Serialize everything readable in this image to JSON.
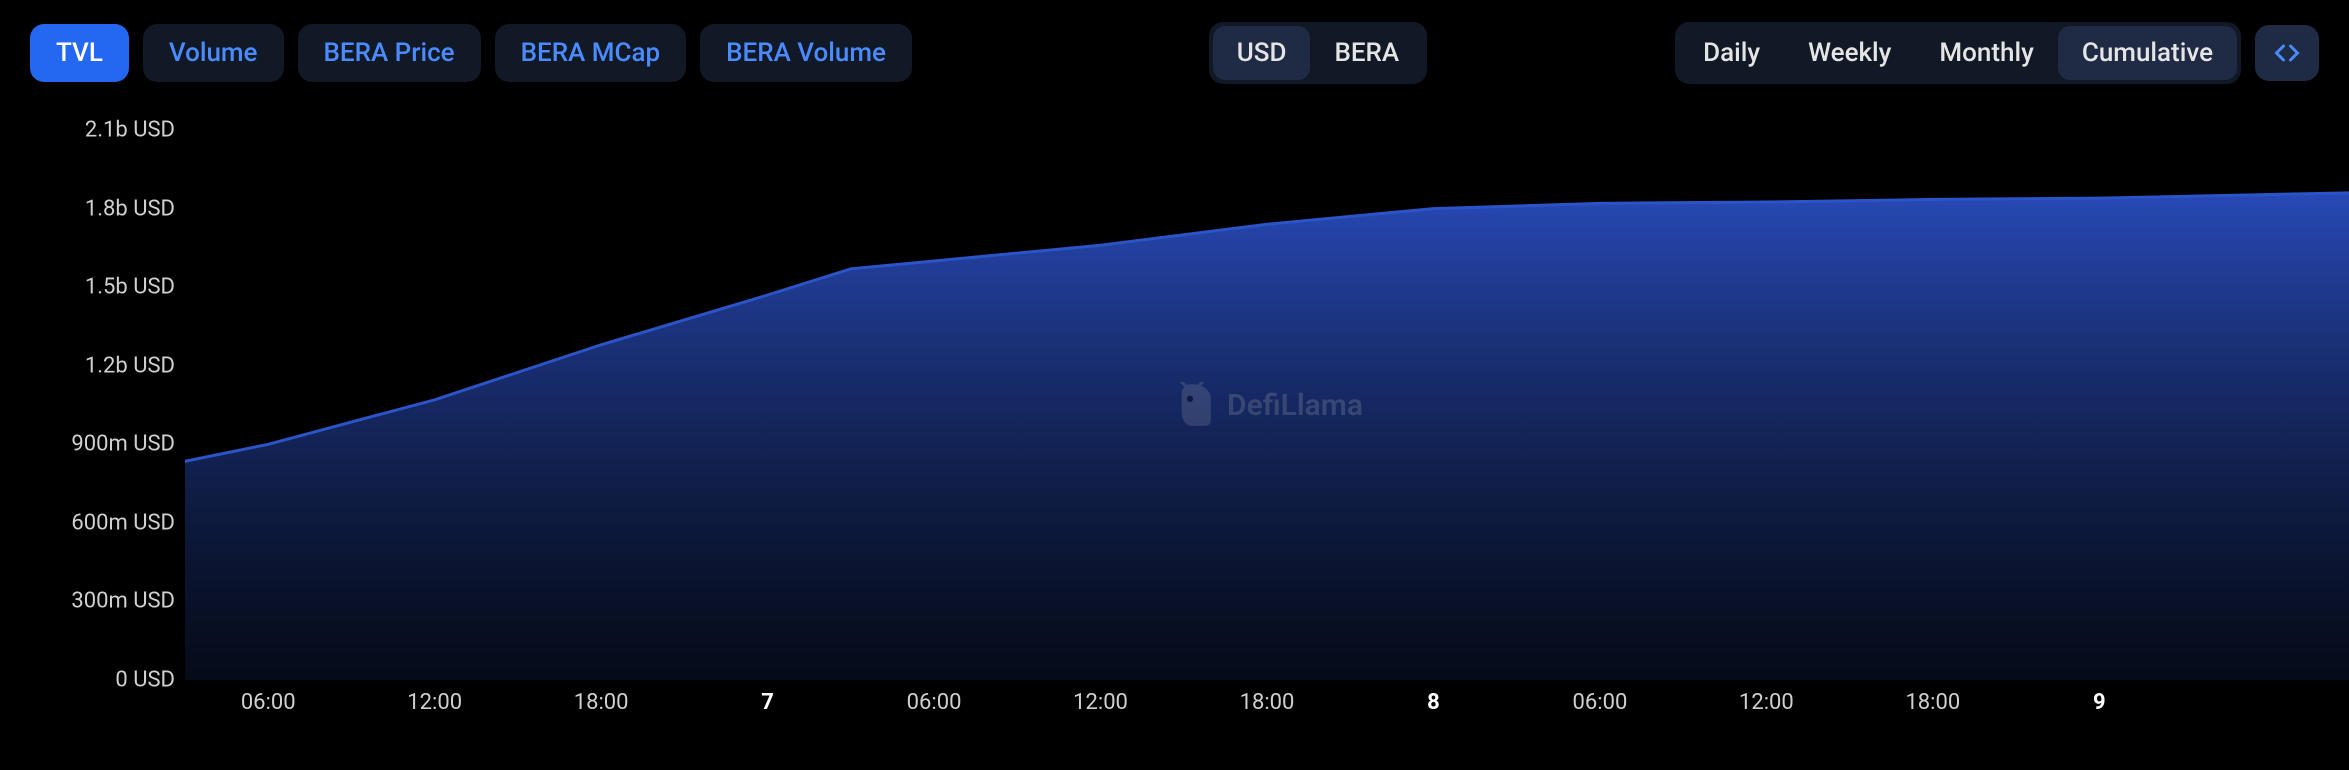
{
  "toolbar": {
    "metrics": [
      {
        "label": "TVL",
        "active": true
      },
      {
        "label": "Volume",
        "active": false
      },
      {
        "label": "BERA Price",
        "active": false
      },
      {
        "label": "BERA MCap",
        "active": false
      },
      {
        "label": "BERA Volume",
        "active": false
      }
    ],
    "currency": [
      {
        "label": "USD",
        "active": true
      },
      {
        "label": "BERA",
        "active": false
      }
    ],
    "interval": [
      {
        "label": "Daily",
        "active": false
      },
      {
        "label": "Weekly",
        "active": false
      },
      {
        "label": "Monthly",
        "active": false
      },
      {
        "label": "Cumulative",
        "active": true
      }
    ]
  },
  "watermark": {
    "text": "DefiLlama"
  },
  "chart": {
    "type": "area",
    "background_color": "#000000",
    "line_color": "#2a54c8",
    "line_width": 3,
    "fill_top_color": "#2a4dc0",
    "fill_bottom_color": "#0a1530",
    "axis_label_color": "#d0d0d0",
    "axis_label_fontsize": 22,
    "y": {
      "min": 0,
      "max": 2100000000,
      "ticks": [
        {
          "value": 0,
          "label": "0 USD"
        },
        {
          "value": 300000000,
          "label": "300m USD"
        },
        {
          "value": 600000000,
          "label": "600m USD"
        },
        {
          "value": 900000000,
          "label": "900m USD"
        },
        {
          "value": 1200000000,
          "label": "1.2b USD"
        },
        {
          "value": 1500000000,
          "label": "1.5b USD"
        },
        {
          "value": 1800000000,
          "label": "1.8b USD"
        },
        {
          "value": 2100000000,
          "label": "2.1b USD"
        }
      ]
    },
    "x": {
      "min": 0,
      "max": 13,
      "ticks": [
        {
          "value": 0.5,
          "label": "06:00",
          "bold": false
        },
        {
          "value": 1.5,
          "label": "12:00",
          "bold": false
        },
        {
          "value": 2.5,
          "label": "18:00",
          "bold": false
        },
        {
          "value": 3.5,
          "label": "7",
          "bold": true
        },
        {
          "value": 4.5,
          "label": "06:00",
          "bold": false
        },
        {
          "value": 5.5,
          "label": "12:00",
          "bold": false
        },
        {
          "value": 6.5,
          "label": "18:00",
          "bold": false
        },
        {
          "value": 7.5,
          "label": "8",
          "bold": true
        },
        {
          "value": 8.5,
          "label": "06:00",
          "bold": false
        },
        {
          "value": 9.5,
          "label": "12:00",
          "bold": false
        },
        {
          "value": 10.5,
          "label": "18:00",
          "bold": false
        },
        {
          "value": 11.5,
          "label": "9",
          "bold": true
        }
      ]
    },
    "series": [
      {
        "x": -0.5,
        "y": 770000000
      },
      {
        "x": 0.5,
        "y": 900000000
      },
      {
        "x": 1.5,
        "y": 1070000000
      },
      {
        "x": 2.5,
        "y": 1280000000
      },
      {
        "x": 3.5,
        "y": 1470000000
      },
      {
        "x": 4.0,
        "y": 1570000000
      },
      {
        "x": 4.5,
        "y": 1600000000
      },
      {
        "x": 5.5,
        "y": 1660000000
      },
      {
        "x": 6.5,
        "y": 1740000000
      },
      {
        "x": 7.5,
        "y": 1800000000
      },
      {
        "x": 8.5,
        "y": 1820000000
      },
      {
        "x": 9.5,
        "y": 1825000000
      },
      {
        "x": 10.5,
        "y": 1835000000
      },
      {
        "x": 11.5,
        "y": 1840000000
      },
      {
        "x": 13.0,
        "y": 1860000000
      }
    ]
  }
}
